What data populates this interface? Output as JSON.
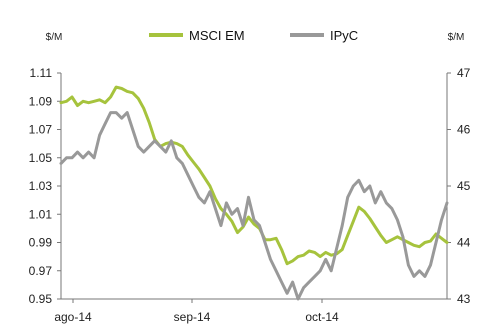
{
  "chart_data": {
    "type": "line",
    "title": "",
    "xlabel": "",
    "y_left_unit": "$/M",
    "y_right_unit": "$/M",
    "y_left_ticks": [
      "1.11",
      "1.09",
      "1.07",
      "1.05",
      "1.03",
      "1.01",
      "0.99",
      "0.97",
      "0.95"
    ],
    "y_right_ticks": [
      "47",
      "46",
      "45",
      "44",
      "43"
    ],
    "y_left_lim": [
      0.95,
      1.11
    ],
    "y_right_lim": [
      43,
      47
    ],
    "x_ticks": [
      "ago-14",
      "sep-14",
      "oct-14"
    ],
    "legend": {
      "placement": "top-center",
      "entries": [
        "MSCI EM",
        "IPyC"
      ]
    },
    "series": [
      {
        "name": "MSCI EM",
        "axis": "left",
        "color": "#a6c33d",
        "values": [
          1.089,
          1.09,
          1.093,
          1.087,
          1.09,
          1.089,
          1.09,
          1.091,
          1.089,
          1.093,
          1.1,
          1.099,
          1.097,
          1.096,
          1.092,
          1.085,
          1.075,
          1.063,
          1.058,
          1.06,
          1.061,
          1.06,
          1.058,
          1.052,
          1.047,
          1.042,
          1.036,
          1.03,
          1.021,
          1.014,
          1.01,
          1.005,
          0.997,
          1.001,
          1.008,
          1.003,
          1.0,
          0.992,
          0.992,
          0.993,
          0.985,
          0.975,
          0.977,
          0.98,
          0.981,
          0.984,
          0.983,
          0.98,
          0.983,
          0.981,
          0.982,
          0.985,
          0.995,
          1.005,
          1.015,
          1.012,
          1.007,
          1.001,
          0.995,
          0.99,
          0.992,
          0.994,
          0.992,
          0.99,
          0.988,
          0.987,
          0.99,
          0.991,
          0.996,
          0.993,
          0.99
        ]
      },
      {
        "name": "IPyC",
        "axis": "right",
        "color": "#999999",
        "values": [
          45.4,
          45.5,
          45.5,
          45.6,
          45.5,
          45.6,
          45.5,
          45.9,
          46.1,
          46.3,
          46.3,
          46.2,
          46.3,
          46.0,
          45.7,
          45.6,
          45.7,
          45.8,
          45.7,
          45.6,
          45.8,
          45.5,
          45.4,
          45.2,
          45.0,
          44.8,
          44.7,
          44.9,
          44.6,
          44.3,
          44.7,
          44.5,
          44.6,
          44.3,
          44.8,
          44.4,
          44.3,
          44.0,
          43.7,
          43.5,
          43.3,
          43.1,
          43.3,
          43.0,
          43.2,
          43.3,
          43.4,
          43.5,
          43.7,
          43.5,
          43.9,
          44.3,
          44.8,
          45.0,
          45.1,
          44.9,
          45.0,
          44.7,
          44.9,
          44.7,
          44.6,
          44.4,
          44.1,
          43.6,
          43.4,
          43.5,
          43.4,
          43.6,
          44.0,
          44.4,
          44.7
        ]
      }
    ]
  }
}
